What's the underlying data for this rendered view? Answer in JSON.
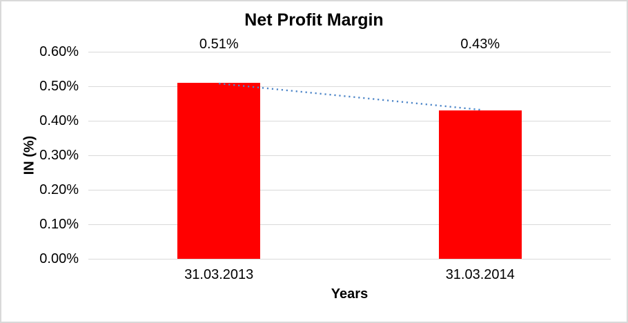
{
  "chart_data": {
    "type": "bar",
    "title": "Net Profit Margin",
    "categories": [
      "31.03.2013",
      "31.03.2014"
    ],
    "values": [
      0.51,
      0.43
    ],
    "data_labels": [
      "0.51%",
      "0.43%"
    ],
    "xlabel": "Years",
    "ylabel": "IN (%)",
    "ylim": [
      0,
      0.6
    ],
    "ytick_step": 0.1,
    "ytick_labels": [
      "0.00%",
      "0.10%",
      "0.20%",
      "0.30%",
      "0.40%",
      "0.50%",
      "0.60%"
    ],
    "grid": true,
    "legend": false,
    "trendline": {
      "type": "linear",
      "style": "dotted",
      "color": "#4E86C8"
    },
    "colors": {
      "bar": "#FF0000",
      "gridline": "#D9D9D9",
      "text": "#000000",
      "background": "#FFFFFF",
      "border": "#D9D9D9"
    }
  }
}
